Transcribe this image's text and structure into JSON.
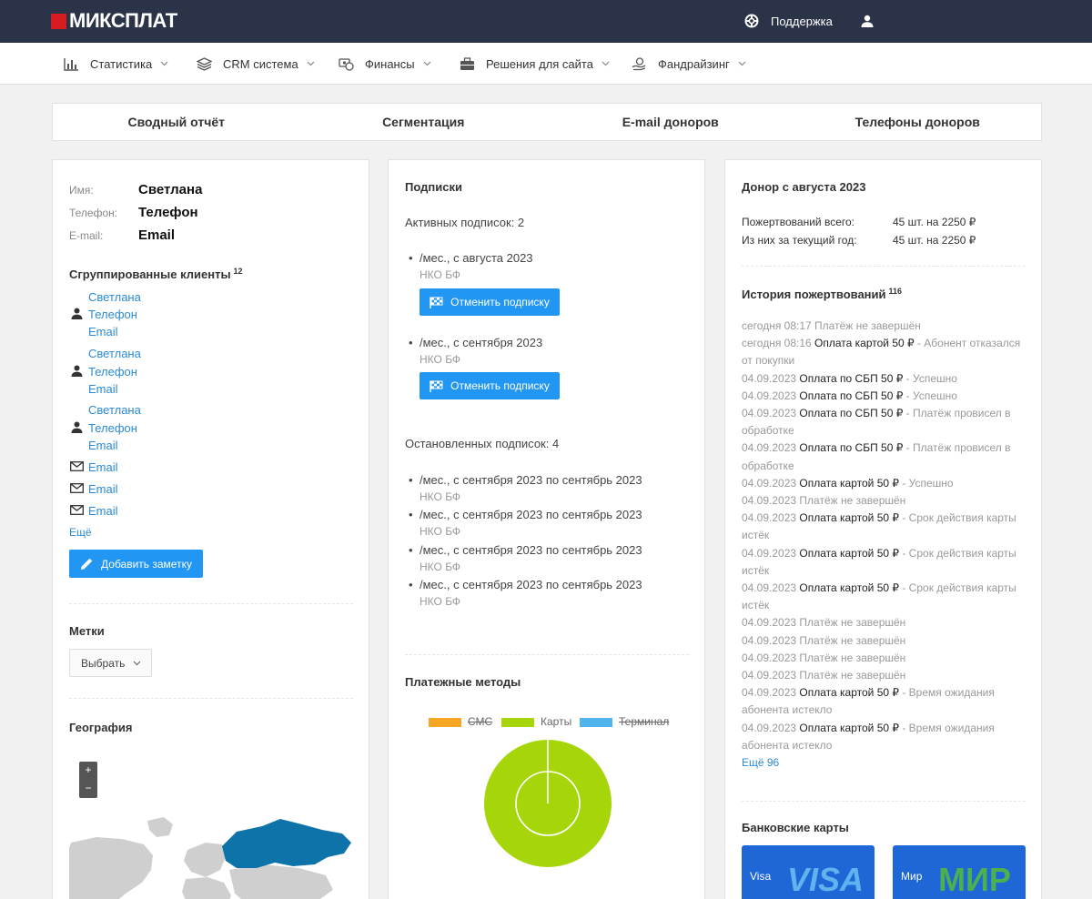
{
  "app": {
    "logo": "МИКСПЛАТ",
    "support": "Поддержка"
  },
  "nav": [
    {
      "label": "Статистика",
      "icon": "bar-chart-icon"
    },
    {
      "label": "CRM система",
      "icon": "layers-icon"
    },
    {
      "label": "Финансы",
      "icon": "coins-icon"
    },
    {
      "label": "Решения для сайта",
      "icon": "briefcase-icon"
    },
    {
      "label": "Фандрайзинг",
      "icon": "hand-coin-icon"
    }
  ],
  "tabs": [
    "Сводный отчёт",
    "Сегментация",
    "E-mail доноров",
    "Телефоны доноров"
  ],
  "profile": {
    "name_label": "Имя:",
    "name_value": "Светлана",
    "phone_label": "Телефон:",
    "phone_value": "Телефон",
    "email_label": "E-mail:",
    "email_value": "Email"
  },
  "grouped": {
    "title": "Сгруппированные клиенты",
    "count": "12",
    "persons": [
      {
        "name": "Светлана",
        "phone": "Телефон",
        "email": "Email"
      },
      {
        "name": "Светлана",
        "phone": "Телефон",
        "email": "Email"
      },
      {
        "name": "Светлана",
        "phone": "Телефон",
        "email": "Email"
      }
    ],
    "emails": [
      "Email",
      "Email",
      "Email"
    ],
    "more": "Ещё",
    "add_note": "Добавить заметку"
  },
  "tags": {
    "title": "Метки",
    "select": "Выбрать"
  },
  "geo": {
    "title": "География",
    "zoom_in": "+",
    "zoom_out": "−"
  },
  "subs": {
    "title": "Подписки",
    "active_title": "Активных подписок: 2",
    "active": [
      {
        "line": "/мес., с августа 2023",
        "org": "НКО БФ",
        "btn": "Отменить подписку"
      },
      {
        "line": "/мес., с сентября 2023",
        "org": "НКО БФ",
        "btn": "Отменить подписку"
      }
    ],
    "stopped_title": "Остановленных подписок: 4",
    "stopped": [
      {
        "line": "/мес., с сентября 2023 по сентябрь 2023",
        "org": "НКО БФ"
      },
      {
        "line": "/мес., с сентября 2023 по сентябрь 2023",
        "org": "НКО БФ"
      },
      {
        "line": "/мес., с сентября 2023 по сентябрь 2023",
        "org": "НКО БФ"
      },
      {
        "line": "/мес., с сентября 2023 по сентябрь 2023",
        "org": "НКО БФ"
      }
    ]
  },
  "payments": {
    "title": "Платежные методы"
  },
  "chart_data": {
    "type": "pie",
    "title": "",
    "legend_position": "top",
    "series": [
      {
        "name": "СМС",
        "value": 0,
        "color": "#f5a623",
        "hidden": true
      },
      {
        "name": "Карты",
        "value": 100,
        "color": "#a6d60a",
        "hidden": false
      },
      {
        "name": "Терминал",
        "value": 0,
        "color": "#4fb4ec",
        "hidden": true
      }
    ]
  },
  "donor": {
    "title": "Донор с августа 2023",
    "total_label": "Пожертвований всего:",
    "total_value": "45 шт. на 2250 ₽",
    "year_label": "Из них за текущий год:",
    "year_value": "45 шт. на 2250 ₽"
  },
  "history": {
    "title": "История пожертвований",
    "count": "116",
    "entries": [
      {
        "date": "сегодня 08:17",
        "main": "",
        "rest": "Платёж не завершён"
      },
      {
        "date": "сегодня 08:16",
        "main": "Оплата картой 50 ₽",
        "rest": " - Абонент отказался от покупки"
      },
      {
        "date": "04.09.2023",
        "main": "Оплата по СБП 50 ₽",
        "rest": " - Успешно"
      },
      {
        "date": "04.09.2023",
        "main": "Оплата по СБП 50 ₽",
        "rest": " - Успешно"
      },
      {
        "date": "04.09.2023",
        "main": "Оплата по СБП 50 ₽",
        "rest": " - Платёж провисел в обработке"
      },
      {
        "date": "04.09.2023",
        "main": "Оплата по СБП 50 ₽",
        "rest": " - Платёж провисел в обработке"
      },
      {
        "date": "04.09.2023",
        "main": "Оплата картой 50 ₽",
        "rest": " - Успешно"
      },
      {
        "date": "04.09.2023",
        "main": "",
        "rest": "Платёж не завершён"
      },
      {
        "date": "04.09.2023",
        "main": "Оплата картой 50 ₽",
        "rest": " - Срок действия карты истёк"
      },
      {
        "date": "04.09.2023",
        "main": "Оплата картой 50 ₽",
        "rest": " - Срок действия карты истёк"
      },
      {
        "date": "04.09.2023",
        "main": "Оплата картой 50 ₽",
        "rest": " - Срок действия карты истёк"
      },
      {
        "date": "04.09.2023",
        "main": "",
        "rest": "Платёж не завершён"
      },
      {
        "date": "04.09.2023",
        "main": "",
        "rest": "Платёж не завершён"
      },
      {
        "date": "04.09.2023",
        "main": "",
        "rest": "Платёж не завершён"
      },
      {
        "date": "04.09.2023",
        "main": "",
        "rest": "Платёж не завершён"
      },
      {
        "date": "04.09.2023",
        "main": "Оплата картой 50 ₽",
        "rest": " - Время ожидания абонента истекло"
      },
      {
        "date": "04.09.2023",
        "main": "Оплата картой 50 ₽",
        "rest": " - Время ожидания абонента истекло"
      }
    ],
    "more": "Ещё 96"
  },
  "bank_cards": {
    "title": "Банковские карты",
    "cards": [
      {
        "label": "Visa",
        "logo": "VISA",
        "color": "#1f67d6",
        "accent": "#5fb4f0"
      },
      {
        "label": "Мир",
        "logo": "МИР",
        "color": "#1f67d6",
        "accent": "#4caf50"
      }
    ]
  }
}
